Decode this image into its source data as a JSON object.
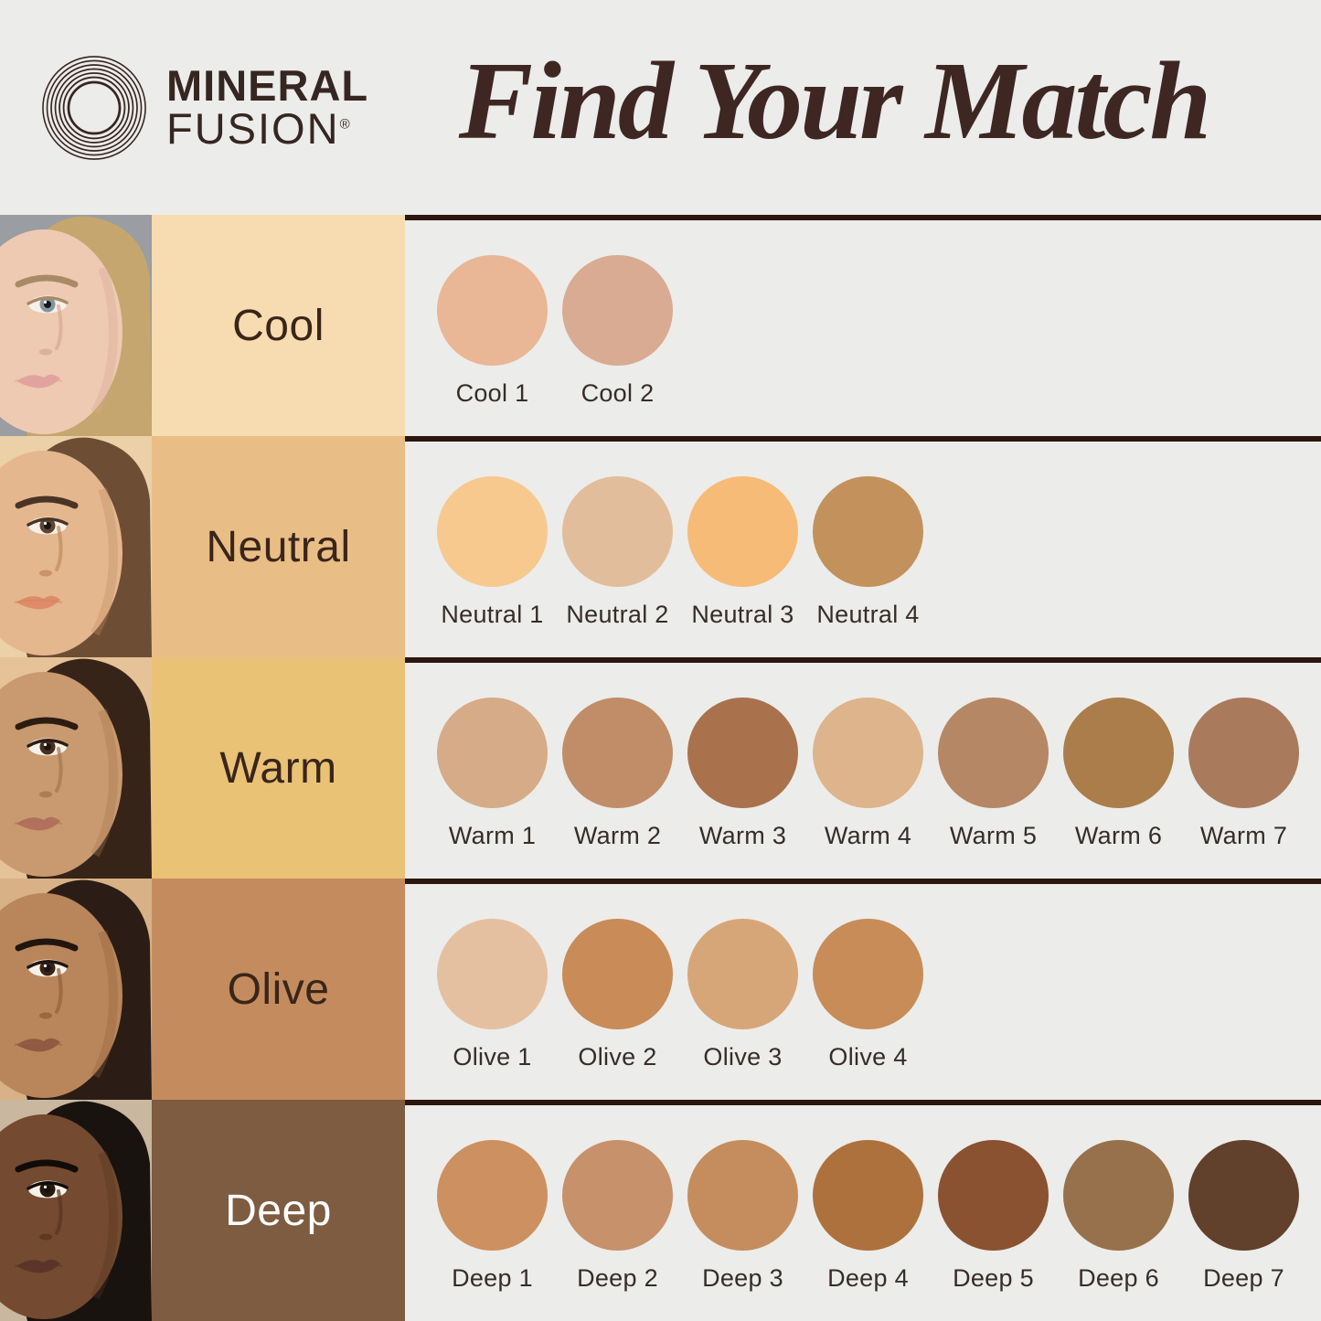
{
  "header": {
    "brand_line1": "MINERAL",
    "brand_line2": "FUSION",
    "brand_registered": "®",
    "title": "Find Your Match"
  },
  "theme": {
    "page_bg": "#ececea",
    "divider": "#2b170f",
    "title_color": "#3e2723",
    "brand_color": "#362621",
    "swatch_label_color": "#362d28",
    "tone_label_dark": "#3a251a",
    "tone_label_light": "#ffffff"
  },
  "rows": [
    {
      "label": "Cool",
      "label_bg": "#f6dcb0",
      "label_text_color": "#3a251a",
      "face": {
        "bg": "#9a9da1",
        "hair": "#c5a66e",
        "skin": "#eecab2",
        "shadow": "#d8a992",
        "brow": "#a98a66",
        "iris": "#8395a1",
        "lip": "#e2a3a0"
      },
      "swatches": [
        {
          "name": "Cool 1",
          "color": "#e9b795"
        },
        {
          "name": "Cool 2",
          "color": "#d9ab93"
        }
      ]
    },
    {
      "label": "Neutral",
      "label_bg": "#e9bd86",
      "label_text_color": "#3a251a",
      "face": {
        "bg": "#ecd0a7",
        "hair": "#6d4e35",
        "skin": "#e4b78e",
        "shadow": "#c08a5f",
        "brow": "#4a3424",
        "iris": "#5f4530",
        "lip": "#e08a68"
      },
      "swatches": [
        {
          "name": "Neutral 1",
          "color": "#f7c98f"
        },
        {
          "name": "Neutral 2",
          "color": "#e2bd9c"
        },
        {
          "name": "Neutral 3",
          "color": "#f6bb77"
        },
        {
          "name": "Neutral 4",
          "color": "#c3915c"
        }
      ]
    },
    {
      "label": "Warm",
      "label_bg": "#e9c276",
      "label_text_color": "#3a251a",
      "face": {
        "bg": "#e5c297",
        "hair": "#372419",
        "skin": "#c99a6f",
        "shadow": "#a3764e",
        "brow": "#2c1c12",
        "iris": "#4a2f1f",
        "lip": "#b3705e"
      },
      "swatches": [
        {
          "name": "Warm 1",
          "color": "#d6ab87"
        },
        {
          "name": "Warm 2",
          "color": "#c08d68"
        },
        {
          "name": "Warm 3",
          "color": "#a9724d"
        },
        {
          "name": "Warm 4",
          "color": "#ddb48c"
        },
        {
          "name": "Warm 5",
          "color": "#b58764"
        },
        {
          "name": "Warm 6",
          "color": "#ab7d4a"
        },
        {
          "name": "Warm 7",
          "color": "#a97a5c"
        }
      ]
    },
    {
      "label": "Olive",
      "label_bg": "#c48c5e",
      "label_text_color": "#3a251a",
      "face": {
        "bg": "#d8b186",
        "hair": "#2b1d15",
        "skin": "#b9865b",
        "shadow": "#925f3a",
        "brow": "#22150e",
        "iris": "#3a2415",
        "lip": "#8e5a44"
      },
      "swatches": [
        {
          "name": "Olive 1",
          "color": "#e5c0a0"
        },
        {
          "name": "Olive 2",
          "color": "#c98b58"
        },
        {
          "name": "Olive 3",
          "color": "#d7a678"
        },
        {
          "name": "Olive 4",
          "color": "#c78c58"
        }
      ]
    },
    {
      "label": "Deep",
      "label_bg": "#7d5c41",
      "label_text_color": "#ffffff",
      "face": {
        "bg": "#c9b79f",
        "hair": "#191310",
        "skin": "#744a30",
        "shadow": "#57351f",
        "brow": "#110c09",
        "iris": "#2a180f",
        "lip": "#5b352a"
      },
      "swatches": [
        {
          "name": "Deep 1",
          "color": "#cd9060"
        },
        {
          "name": "Deep 2",
          "color": "#c6916b"
        },
        {
          "name": "Deep 3",
          "color": "#c58d5d"
        },
        {
          "name": "Deep 4",
          "color": "#ad713d"
        },
        {
          "name": "Deep 5",
          "color": "#8a5231"
        },
        {
          "name": "Deep 6",
          "color": "#97714b"
        },
        {
          "name": "Deep 7",
          "color": "#61402c"
        }
      ]
    }
  ]
}
